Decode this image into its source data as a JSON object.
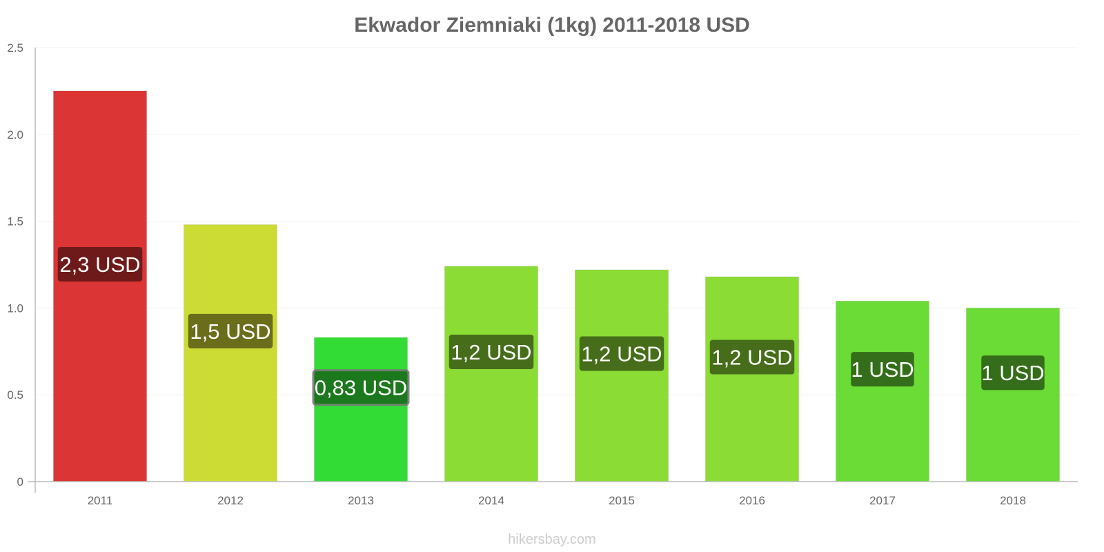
{
  "chart_data": {
    "type": "bar",
    "title": "Ekwador Ziemniaki (1kg) 2011-2018 USD",
    "xlabel": "",
    "ylabel": "",
    "ylim": [
      0,
      2.5
    ],
    "yticks": [
      "0",
      "0.5",
      "1.0",
      "1.5",
      "2.0",
      "2.5"
    ],
    "grid": true,
    "categories": [
      "2011",
      "2012",
      "2013",
      "2014",
      "2015",
      "2016",
      "2017",
      "2018"
    ],
    "values": [
      2.25,
      1.48,
      0.83,
      1.24,
      1.22,
      1.18,
      1.04,
      1.0
    ],
    "data_labels": [
      "2,3 USD",
      "1,5 USD",
      "0,83 USD",
      "1,2 USD",
      "1,2 USD",
      "1,2 USD",
      "1 USD",
      "1 USD"
    ],
    "bar_colors": [
      "#dc3535",
      "#cddc35",
      "#33dc35",
      "#8bdc35",
      "#8bdc35",
      "#8bdc35",
      "#6bdc35",
      "#6bdc35"
    ],
    "label_colors": [
      "#6e1a1a",
      "#6a6d1a",
      "#1a6e1a",
      "#466e1a",
      "#466e1a",
      "#466e1a",
      "#356e1a",
      "#356e1a"
    ]
  },
  "watermark": "hikersbay.com"
}
